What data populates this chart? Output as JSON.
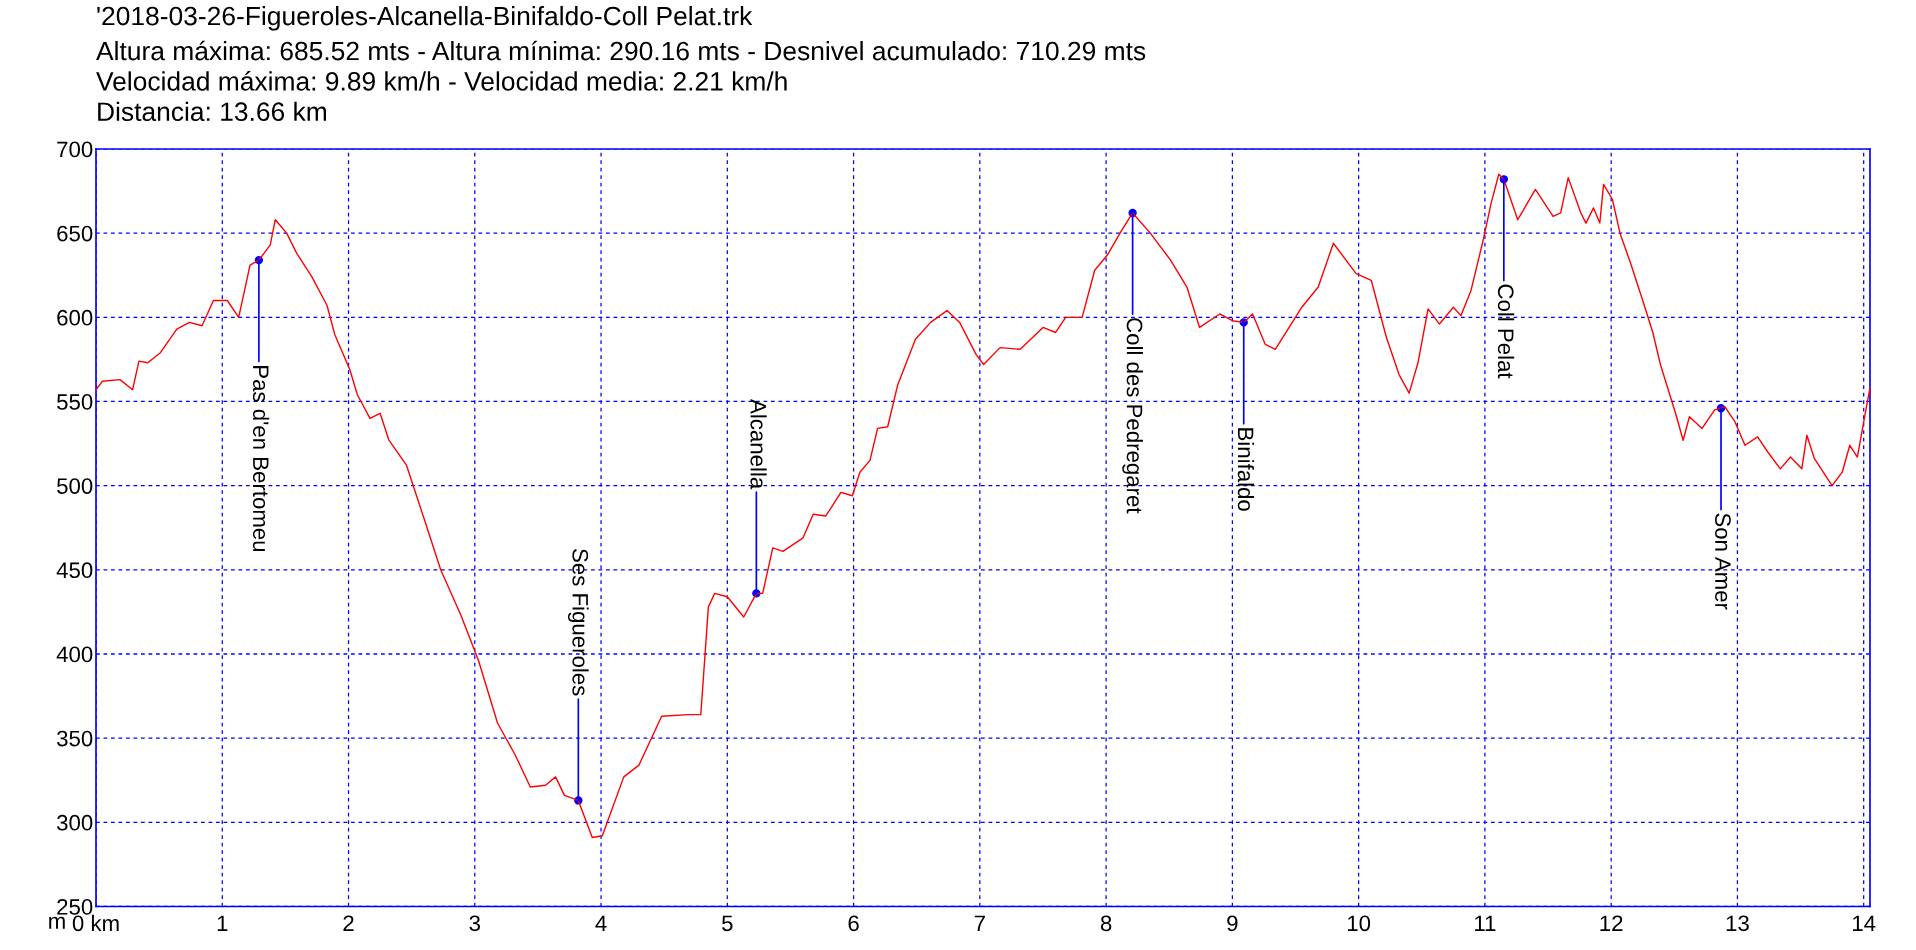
{
  "chart_data": {
    "type": "line",
    "title": "'2018-03-26-Figueroles-Alcanella-Binifaldo-Coll Pelat.trk",
    "subtitle": "Altura máxima: 685.52 mts - Altura mínima: 290.16 mts - Desnivel acumulado: 710.29 mts\nVelocidad máxima: 9.89 km/h - Velocidad media: 2.21 km/h\nDistancia: 13.66 km",
    "ylabel": "m",
    "x": [
      0,
      0.05,
      0.19,
      0.29,
      0.34,
      0.41,
      0.51,
      0.64,
      0.74,
      0.84,
      0.93,
      1.04,
      1.13,
      1.22,
      1.29,
      1.38,
      1.42,
      1.51,
      1.59,
      1.71,
      1.83,
      1.89,
      2.01,
      2.07,
      2.17,
      2.25,
      2.32,
      2.46,
      2.6,
      2.73,
      2.89,
      3.03,
      3.18,
      3.32,
      3.44,
      3.56,
      3.64,
      3.71,
      3.82,
      3.93,
      4.01,
      4.18,
      4.3,
      4.48,
      4.69,
      4.79,
      4.85,
      4.9,
      5.0,
      5.13,
      5.23,
      5.28,
      5.36,
      5.44,
      5.6,
      5.68,
      5.78,
      5.9,
      5.99,
      6.05,
      6.13,
      6.19,
      6.27,
      6.35,
      6.49,
      6.61,
      6.74,
      6.84,
      6.97,
      7.03,
      7.16,
      7.32,
      7.5,
      7.6,
      7.68,
      7.81,
      7.91,
      8.01,
      8.11,
      8.21,
      8.35,
      8.51,
      8.64,
      8.74,
      8.9,
      9.0,
      9.09,
      9.16,
      9.26,
      9.34,
      9.55,
      9.68,
      9.8,
      9.98,
      10.1,
      10.22,
      10.32,
      10.4,
      10.47,
      10.55,
      10.64,
      10.75,
      10.81,
      10.89,
      10.99,
      11.05,
      11.11,
      11.15,
      11.26,
      11.4,
      11.54,
      11.6,
      11.66,
      11.76,
      11.8,
      11.86,
      11.91,
      11.94,
      12.01,
      12.07,
      12.15,
      12.25,
      12.33,
      12.39,
      12.51,
      12.57,
      12.62,
      12.72,
      12.82,
      12.87,
      12.9,
      12.98,
      13.06,
      13.16,
      13.24,
      13.34,
      13.42,
      13.51,
      13.55,
      13.61,
      13.75,
      13.83,
      13.89,
      13.95,
      14.01,
      14.05
    ],
    "series": [
      {
        "color": "#ff0000",
        "values": [
          557,
          562,
          563,
          557,
          574,
          573,
          579,
          593,
          597,
          595,
          610,
          610,
          600,
          631,
          634,
          643,
          658,
          650,
          638,
          624,
          607,
          590,
          569,
          554,
          540,
          543,
          527,
          512,
          480,
          450,
          423,
          396,
          359,
          340,
          321,
          322,
          327,
          316,
          313,
          291,
          292,
          327,
          334,
          363,
          364,
          364,
          428,
          436,
          434,
          422,
          436,
          436,
          463,
          461,
          469,
          483,
          482,
          496,
          494,
          508,
          515,
          534,
          535,
          560,
          587,
          597,
          604,
          597,
          578,
          572,
          582,
          581,
          594,
          591,
          600,
          600,
          628,
          637,
          650,
          662,
          650,
          634,
          618,
          594,
          602,
          598,
          597,
          602,
          584,
          581,
          606,
          618,
          644,
          626,
          622,
          588,
          566,
          555,
          573,
          605,
          596,
          606,
          601,
          616,
          647,
          668,
          685,
          682,
          658,
          676,
          660,
          662,
          683,
          662,
          656,
          665,
          656,
          679,
          670,
          650,
          633,
          610,
          591,
          572,
          543,
          527,
          541,
          534,
          545,
          546,
          547,
          538,
          524,
          529,
          520,
          510,
          517,
          510,
          530,
          516,
          500,
          508,
          524,
          517,
          542,
          558
        ]
      }
    ],
    "annotations": [
      {
        "text": "Pas d'en Bertomeu",
        "x": 1.29,
        "y": 634
      },
      {
        "text": "Ses Figueroles",
        "x": 3.82,
        "y": 313
      },
      {
        "text": "Alcanella",
        "x": 5.23,
        "y": 436
      },
      {
        "text": "Coll des Pedregaret",
        "x": 8.21,
        "y": 662
      },
      {
        "text": "Binifaldo",
        "x": 9.09,
        "y": 597
      },
      {
        "text": "Coll Pelat",
        "x": 11.15,
        "y": 682
      },
      {
        "text": "Son Amer",
        "x": 12.87,
        "y": 546
      }
    ],
    "xlim": [
      0,
      14.05
    ],
    "xticks": [
      {
        "value": 0,
        "label": "0 km"
      },
      1,
      2,
      3,
      4,
      5,
      6,
      7,
      8,
      9,
      10,
      11,
      12,
      13,
      14
    ],
    "ylim": [
      250,
      700
    ],
    "yticks": [
      250,
      300,
      350,
      400,
      450,
      500,
      550,
      600,
      650,
      700
    ],
    "grid": true,
    "marker": "none",
    "line_style": "solid",
    "legend": false
  }
}
